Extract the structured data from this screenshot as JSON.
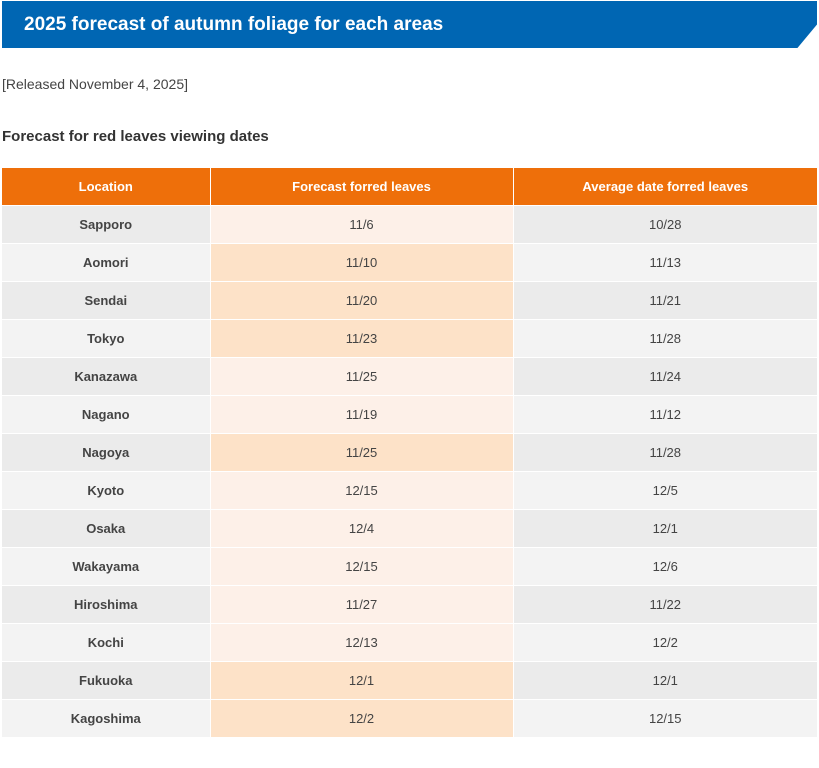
{
  "header": {
    "title": "2025 forecast of autumn foliage for each areas",
    "released": "[Released November 4, 2025]"
  },
  "section": {
    "title": "Forecast for red leaves viewing dates"
  },
  "table": {
    "columns": [
      "Location",
      "Forecast forred leaves",
      "Average date forred leaves"
    ],
    "rows": [
      {
        "location": "Sapporo",
        "forecast": "11/6",
        "average": "10/28"
      },
      {
        "location": "Aomori",
        "forecast": "11/10",
        "average": "11/13"
      },
      {
        "location": "Sendai",
        "forecast": "11/20",
        "average": "11/21"
      },
      {
        "location": "Tokyo",
        "forecast": "11/23",
        "average": "11/28"
      },
      {
        "location": "Kanazawa",
        "forecast": "11/25",
        "average": "11/24"
      },
      {
        "location": "Nagano",
        "forecast": "11/19",
        "average": "11/12"
      },
      {
        "location": "Nagoya",
        "forecast": "11/25",
        "average": "11/28"
      },
      {
        "location": "Kyoto",
        "forecast": "12/15",
        "average": "12/5"
      },
      {
        "location": "Osaka",
        "forecast": "12/4",
        "average": "12/1"
      },
      {
        "location": "Wakayama",
        "forecast": "12/15",
        "average": "12/6"
      },
      {
        "location": "Hiroshima",
        "forecast": "11/27",
        "average": "11/22"
      },
      {
        "location": "Kochi",
        "forecast": "12/13",
        "average": "12/2"
      },
      {
        "location": "Fukuoka",
        "forecast": "12/1",
        "average": "12/1"
      },
      {
        "location": "Kagoshima",
        "forecast": "12/2",
        "average": "12/15"
      }
    ]
  },
  "colors": {
    "banner": "#0066b3",
    "header_row": "#ee6f0a",
    "forecast_earlier_or_same": "#fde2c8",
    "forecast_later": "#fdf0e8"
  }
}
